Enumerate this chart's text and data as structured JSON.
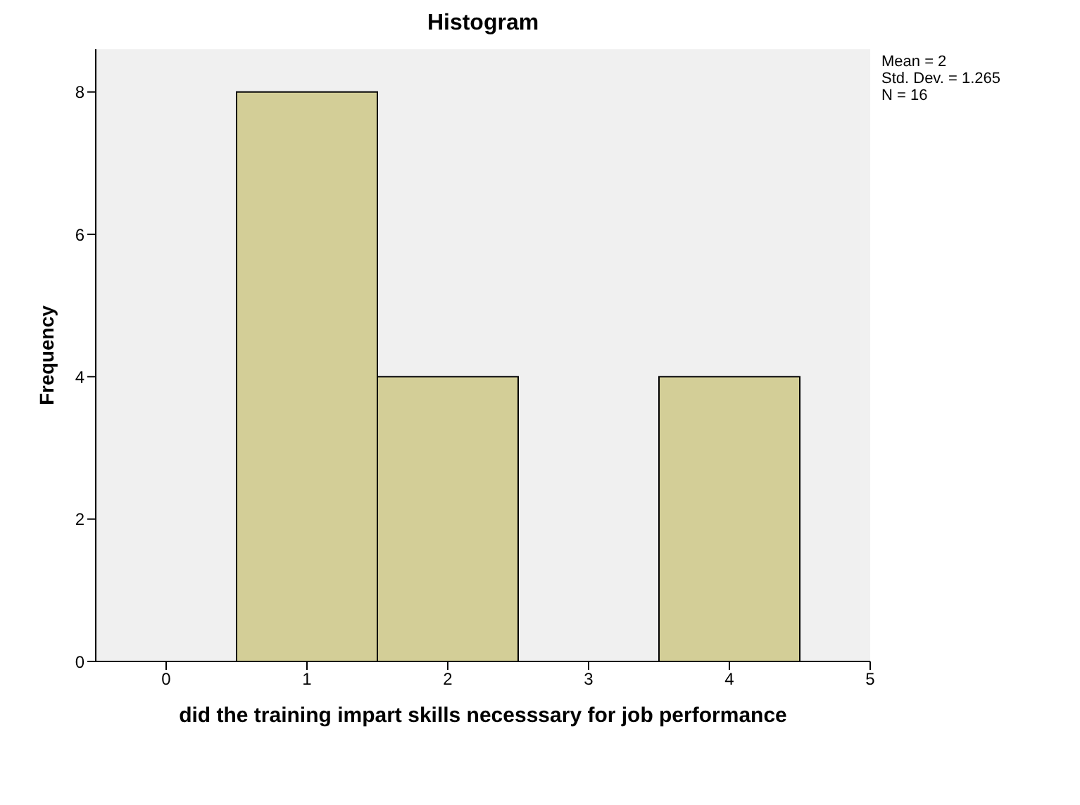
{
  "chart_data": {
    "type": "histogram",
    "title": "Histogram",
    "xlabel": "did the training impart skills necesssary for job performance",
    "ylabel": "Frequency",
    "bins": [
      0.5,
      1.5,
      2.5,
      3.5,
      4.5
    ],
    "values": [
      8,
      4,
      0,
      4
    ],
    "color": "#d3ce97",
    "xlim": [
      -0.5,
      5.0
    ],
    "xticks": [
      0,
      1,
      2,
      3,
      4,
      5
    ],
    "ylim": [
      0,
      8.6
    ],
    "yticks": [
      0,
      2,
      4,
      6,
      8
    ],
    "annotations": [
      "Mean = 2",
      "Std. Dev. = 1.265",
      "N = 16"
    ]
  }
}
